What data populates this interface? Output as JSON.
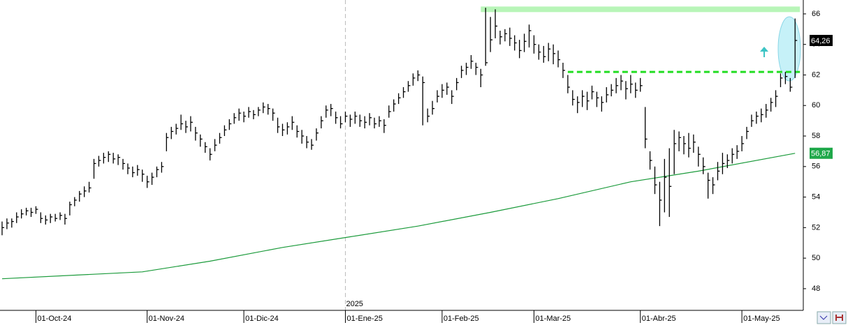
{
  "chart_data": {
    "type": "ohlc",
    "color": "#000000",
    "x": [
      0,
      1,
      2,
      3,
      4,
      5,
      6,
      7,
      8,
      9,
      10,
      11,
      12,
      13,
      14,
      15,
      16,
      17,
      18,
      19,
      20,
      21,
      22,
      23,
      24,
      25,
      26,
      27,
      28,
      29,
      30,
      31,
      32,
      33,
      34,
      35,
      36,
      37,
      38,
      39,
      40,
      41,
      42,
      43,
      44,
      45,
      46,
      47,
      48,
      49,
      50,
      51,
      52,
      53,
      54,
      55,
      56,
      57,
      58,
      59,
      60,
      61,
      62,
      63,
      64,
      65,
      66,
      67,
      68,
      69,
      70,
      71,
      72,
      73,
      74,
      75,
      76,
      77,
      78,
      79,
      80,
      81,
      82,
      83,
      84,
      85,
      86,
      87,
      88,
      89,
      90,
      91,
      92,
      93,
      94,
      95,
      96,
      97,
      98,
      99,
      100,
      101,
      102,
      103,
      104,
      105,
      106,
      107,
      108,
      109,
      110,
      111,
      112,
      113,
      114,
      115,
      116,
      117,
      118,
      119,
      120,
      121,
      122,
      123,
      124,
      125,
      126,
      127,
      128,
      129,
      130,
      131,
      132,
      133,
      134,
      135,
      136,
      137,
      138,
      139,
      140,
      141,
      142,
      143,
      144,
      145,
      146,
      147,
      148,
      149,
      150,
      151,
      152,
      153,
      154,
      155,
      156,
      157,
      158,
      159,
      160,
      161,
      162,
      163,
      164
    ],
    "high": [
      52.4,
      52.6,
      52.6,
      53.0,
      53.2,
      53.3,
      53.3,
      53.4,
      53.0,
      52.8,
      52.9,
      52.9,
      53.0,
      52.9,
      53.7,
      54.0,
      54.4,
      54.7,
      55.0,
      56.5,
      56.7,
      56.9,
      57.0,
      56.9,
      56.8,
      56.5,
      56.2,
      56.0,
      56.1,
      55.8,
      55.4,
      55.6,
      56.0,
      56.3,
      58.2,
      58.6,
      58.8,
      59.4,
      59.0,
      59.3,
      58.6,
      58.1,
      57.6,
      57.2,
      57.8,
      58.2,
      58.7,
      59.1,
      59.5,
      59.8,
      59.6,
      59.9,
      59.7,
      59.9,
      60.2,
      60.1,
      59.8,
      59.2,
      58.8,
      58.9,
      59.3,
      58.7,
      58.4,
      58.0,
      57.8,
      58.5,
      59.3,
      60.0,
      60.1,
      59.6,
      59.3,
      59.6,
      59.4,
      59.6,
      59.4,
      59.3,
      59.5,
      59.2,
      59.3,
      59.1,
      60.0,
      60.4,
      60.8,
      61.2,
      61.6,
      62.1,
      62.3,
      61.9,
      59.8,
      60.3,
      61.0,
      61.4,
      61.5,
      61.0,
      61.8,
      62.6,
      62.8,
      63.3,
      62.8,
      62.4,
      66.4,
      65.8,
      66.3,
      64.9,
      65.0,
      65.1,
      64.6,
      64.3,
      64.7,
      65.3,
      64.6,
      64.0,
      63.9,
      64.1,
      64.0,
      63.6,
      62.8,
      62.0,
      61.0,
      60.6,
      61.0,
      60.9,
      61.3,
      60.9,
      60.6,
      61.2,
      61.4,
      61.8,
      62.0,
      61.6,
      62.0,
      61.5,
      61.8,
      59.9,
      57.0,
      56.0,
      55.0,
      56.5,
      57.2,
      58.4,
      58.3,
      58.0,
      58.2,
      58.1,
      57.3,
      56.6,
      55.6,
      55.3,
      56.3,
      56.9,
      56.8,
      57.2,
      57.4,
      58.0,
      58.6,
      59.4,
      59.6,
      59.8,
      60.1,
      60.5,
      61.0,
      62.1,
      62.2,
      61.8,
      65.7
    ],
    "low": [
      51.5,
      51.9,
      52.0,
      52.3,
      52.6,
      52.8,
      52.7,
      52.9,
      52.3,
      52.2,
      52.3,
      52.4,
      52.5,
      52.2,
      52.8,
      53.4,
      53.7,
      54.0,
      54.3,
      55.2,
      56.0,
      56.2,
      56.3,
      56.2,
      56.1,
      55.8,
      55.5,
      55.3,
      55.4,
      55.0,
      54.6,
      54.8,
      55.3,
      55.6,
      57.0,
      57.8,
      58.1,
      58.4,
      58.2,
      58.3,
      57.7,
      57.3,
      56.9,
      56.4,
      57.0,
      57.5,
      58.0,
      58.4,
      58.8,
      59.0,
      58.9,
      59.2,
      59.1,
      59.3,
      59.5,
      59.4,
      59.0,
      58.2,
      58.0,
      58.1,
      58.4,
      57.9,
      57.5,
      57.2,
      57.1,
      57.7,
      58.5,
      59.2,
      59.3,
      58.8,
      58.5,
      58.9,
      58.6,
      58.8,
      58.6,
      58.5,
      58.7,
      58.5,
      58.6,
      58.2,
      59.2,
      59.6,
      60.1,
      60.5,
      60.9,
      61.3,
      61.6,
      58.7,
      58.9,
      59.4,
      60.2,
      60.5,
      60.7,
      60.1,
      61.0,
      61.8,
      62.0,
      62.4,
      62.0,
      61.2,
      62.6,
      63.5,
      64.4,
      64.0,
      64.2,
      63.9,
      63.6,
      63.1,
      63.5,
      63.8,
      63.4,
      63.0,
      62.8,
      62.9,
      62.7,
      62.5,
      61.8,
      60.8,
      60.0,
      59.5,
      59.9,
      59.7,
      60.4,
      59.9,
      59.6,
      60.2,
      60.6,
      60.8,
      61.0,
      60.4,
      60.8,
      60.5,
      60.9,
      57.2,
      55.8,
      54.2,
      52.1,
      53.0,
      52.7,
      55.5,
      57.0,
      56.8,
      56.6,
      56.9,
      56.0,
      55.5,
      53.9,
      54.2,
      55.1,
      55.5,
      55.9,
      56.2,
      56.5,
      57.0,
      57.8,
      58.6,
      58.8,
      58.9,
      59.2,
      59.6,
      59.9,
      61.2,
      61.4,
      60.9,
      61.8
    ],
    "close": [
      52.0,
      52.3,
      52.4,
      52.7,
      52.9,
      53.1,
      53.0,
      53.2,
      52.6,
      52.5,
      52.7,
      52.6,
      52.8,
      52.6,
      53.5,
      53.8,
      54.2,
      54.4,
      54.6,
      56.2,
      56.4,
      56.6,
      56.8,
      56.5,
      56.6,
      56.2,
      55.9,
      55.6,
      55.8,
      55.5,
      55.0,
      55.3,
      55.8,
      56.0,
      57.9,
      58.3,
      58.5,
      58.8,
      58.6,
      58.9,
      58.2,
      57.8,
      57.3,
      56.8,
      57.4,
      57.9,
      58.4,
      58.8,
      59.2,
      59.5,
      59.3,
      59.6,
      59.4,
      59.7,
      59.9,
      59.8,
      59.5,
      58.6,
      58.4,
      58.6,
      58.9,
      58.3,
      58.0,
      57.6,
      57.4,
      58.2,
      59.0,
      59.7,
      59.8,
      59.2,
      58.8,
      59.3,
      59.1,
      59.3,
      59.0,
      58.9,
      59.2,
      58.8,
      59.0,
      58.7,
      59.6,
      60.1,
      60.5,
      60.9,
      61.3,
      61.8,
      62.0,
      61.5,
      59.3,
      59.8,
      60.6,
      61.0,
      61.2,
      60.6,
      61.5,
      62.3,
      62.5,
      62.9,
      62.5,
      62.0,
      62.8,
      64.3,
      65.2,
      64.5,
      64.7,
      64.4,
      64.1,
      63.6,
      64.2,
      64.9,
      64.0,
      63.5,
      63.2,
      63.7,
      63.4,
      63.0,
      62.3,
      61.2,
      60.4,
      60.2,
      60.6,
      60.3,
      60.9,
      60.5,
      60.2,
      60.7,
      61.0,
      61.3,
      61.6,
      61.1,
      61.4,
      61.0,
      61.3,
      57.8,
      56.4,
      54.8,
      53.8,
      55.3,
      54.7,
      57.5,
      57.9,
      57.5,
      57.2,
      57.6,
      56.8,
      56.0,
      55.1,
      54.8,
      55.7,
      56.2,
      56.4,
      56.8,
      57.0,
      57.5,
      58.3,
      59.0,
      59.3,
      59.4,
      59.7,
      60.2,
      60.6,
      61.8,
      61.9,
      61.2,
      64.26
    ],
    "moving_average": {
      "color": "#1a9a3a",
      "x": [
        0,
        29,
        43,
        58,
        72,
        86,
        101,
        115,
        130,
        144,
        164
      ],
      "values": [
        48.65,
        49.1,
        49.8,
        50.7,
        51.4,
        52.1,
        53.0,
        53.9,
        55.0,
        55.7,
        56.87
      ]
    },
    "resistance": {
      "value": 66.3,
      "x": [
        99,
        165
      ],
      "color": "#b8f5b8"
    },
    "support": {
      "value": 62.2,
      "x": [
        117,
        165
      ],
      "color": "#22dd22"
    },
    "price_labels": [
      {
        "value": 64.26,
        "label": "64,26",
        "color": "#000000"
      },
      {
        "value": 56.87,
        "label": "56,87",
        "color": "#1fa84a"
      }
    ],
    "year_marker": {
      "value": 71,
      "label": "2025"
    },
    "xlim": [
      -0.43,
      165.7
    ],
    "xticks": [
      {
        "value": 7,
        "label": "01-Oct-24"
      },
      {
        "value": 30,
        "label": "01-Nov-24"
      },
      {
        "value": 50,
        "label": "01-Dic-24"
      },
      {
        "value": 71,
        "label": "01-Ene-25"
      },
      {
        "value": 91,
        "label": "01-Feb-25"
      },
      {
        "value": 110,
        "label": "01-Mar-25"
      },
      {
        "value": 132,
        "label": "01-Abr-25"
      },
      {
        "value": 153,
        "label": "01-May-25"
      }
    ],
    "ylim": [
      46.58,
      66.91
    ],
    "yticks": [
      48,
      50,
      52,
      54,
      56,
      58,
      60,
      62,
      64,
      66
    ]
  }
}
